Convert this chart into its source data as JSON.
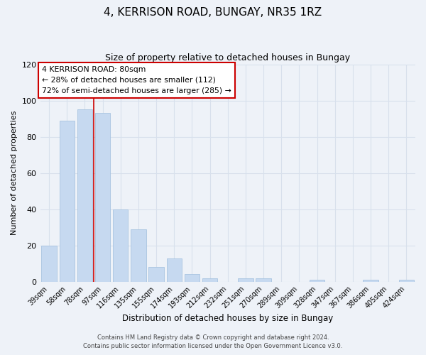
{
  "title": "4, KERRISON ROAD, BUNGAY, NR35 1RZ",
  "subtitle": "Size of property relative to detached houses in Bungay",
  "xlabel": "Distribution of detached houses by size in Bungay",
  "ylabel": "Number of detached properties",
  "bar_labels": [
    "39sqm",
    "58sqm",
    "78sqm",
    "97sqm",
    "116sqm",
    "135sqm",
    "155sqm",
    "174sqm",
    "193sqm",
    "212sqm",
    "232sqm",
    "251sqm",
    "270sqm",
    "289sqm",
    "309sqm",
    "328sqm",
    "347sqm",
    "367sqm",
    "386sqm",
    "405sqm",
    "424sqm"
  ],
  "bar_values": [
    20,
    89,
    95,
    93,
    40,
    29,
    8,
    13,
    4,
    2,
    0,
    2,
    2,
    0,
    0,
    1,
    0,
    0,
    1,
    0,
    1
  ],
  "bar_color": "#c6d9f0",
  "bar_edge_color": "#a8c4e0",
  "property_line_x": 2.5,
  "property_line_label": "4 KERRISON ROAD: 80sqm",
  "annotation_line1": "← 28% of detached houses are smaller (112)",
  "annotation_line2": "72% of semi-detached houses are larger (285) →",
  "annotation_box_color": "#cc0000",
  "ylim": [
    0,
    120
  ],
  "yticks": [
    0,
    20,
    40,
    60,
    80,
    100,
    120
  ],
  "bg_color": "#eef2f8",
  "grid_color": "#d8e0ec",
  "footer1": "Contains HM Land Registry data © Crown copyright and database right 2024.",
  "footer2": "Contains public sector information licensed under the Open Government Licence v3.0."
}
